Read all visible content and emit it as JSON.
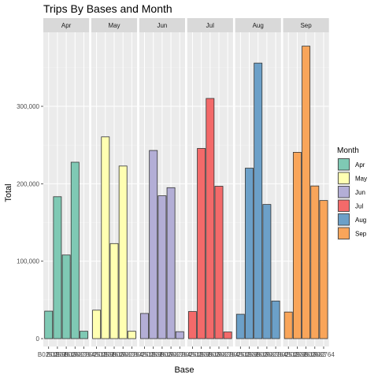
{
  "chart_data": {
    "type": "bar",
    "title": "Trips By Bases and Month",
    "xlabel": "Base",
    "ylabel": "Total",
    "ylim": [
      0,
      400000
    ],
    "yticks": [
      0,
      100000,
      200000,
      300000
    ],
    "ytick_labels": [
      "0",
      "100,000",
      "200,000",
      "300,000"
    ],
    "categories": [
      "B02512",
      "B02598",
      "B02617",
      "B02682",
      "B02764"
    ],
    "facets": [
      "Apr",
      "May",
      "Jun",
      "Jul",
      "Aug",
      "Sep"
    ],
    "legend": {
      "title": "Month",
      "position": "right",
      "entries": [
        "Apr",
        "May",
        "Jun",
        "Jul",
        "Aug",
        "Sep"
      ]
    },
    "series": [
      {
        "name": "Apr",
        "color": "#7fc9b4",
        "values": [
          35536,
          183263,
          108001,
          227808,
          9504
        ]
      },
      {
        "name": "May",
        "color": "#ffffb2",
        "values": [
          36765,
          260549,
          122734,
          222883,
          9504
        ]
      },
      {
        "name": "Jun",
        "color": "#b3aed6",
        "values": [
          32509,
          242975,
          184460,
          194926,
          8974
        ]
      },
      {
        "name": "Jul",
        "color": "#f36a6a",
        "values": [
          35021,
          245597,
          310160,
          196754,
          8589
        ]
      },
      {
        "name": "Aug",
        "color": "#6ca0c8",
        "values": [
          31472,
          220129,
          355803,
          173280,
          48591
        ]
      },
      {
        "name": "Sep",
        "color": "#f9a55a",
        "values": [
          34370,
          240600,
          377695,
          197138,
          178333
        ]
      }
    ],
    "grid": true,
    "panel_background": "#ebebeb",
    "strip_background": "#d9d9d9",
    "bar_outline": "#333333"
  }
}
